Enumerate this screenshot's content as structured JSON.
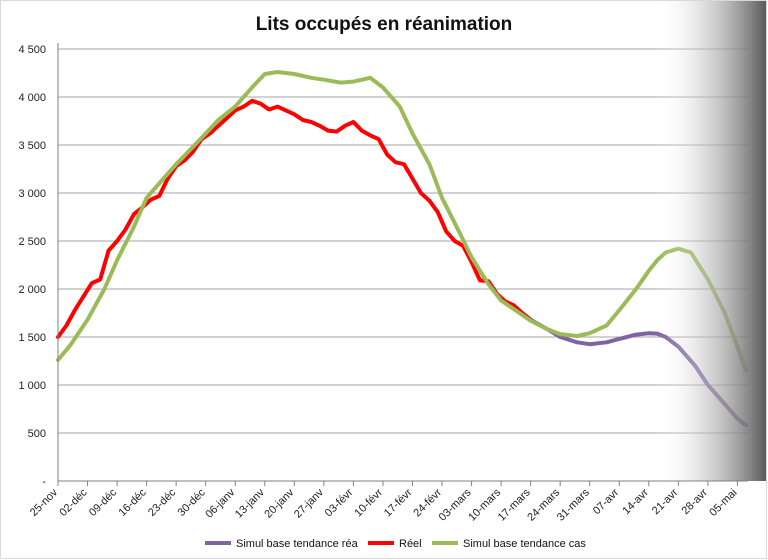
{
  "chart_data": {
    "type": "line",
    "title": "Lits occupés en réanimation",
    "xlabel": "",
    "ylabel": "",
    "ylim": [
      0,
      4500
    ],
    "yticks": [
      {
        "value": 0,
        "label": "-"
      },
      {
        "value": 500,
        "label": "500"
      },
      {
        "value": 1000,
        "label": "1 000"
      },
      {
        "value": 1500,
        "label": "1 500"
      },
      {
        "value": 2000,
        "label": "2 000"
      },
      {
        "value": 2500,
        "label": "2 500"
      },
      {
        "value": 3000,
        "label": "3 000"
      },
      {
        "value": 3500,
        "label": "3 500"
      },
      {
        "value": 4000,
        "label": "4 000"
      },
      {
        "value": 4500,
        "label": "4 500"
      }
    ],
    "xticks": [
      "25-nov",
      "02-déc",
      "09-déc",
      "16-déc",
      "23-déc",
      "30-déc",
      "06-janv",
      "13-janv",
      "20-janv",
      "27-janv",
      "03-févr",
      "10-févr",
      "17-févr",
      "24-févr",
      "03-mars",
      "10-mars",
      "17-mars",
      "24-mars",
      "31-mars",
      "07-avr",
      "14-avr",
      "21-avr",
      "28-avr",
      "05-mai"
    ],
    "grid": true,
    "legend": "bottom",
    "fade_from": "16-avr",
    "series": [
      {
        "name": "Simul base tendance réa",
        "color": "#8064a2",
        "x": [
          "17-mars",
          "21-mars",
          "24-mars",
          "28-mars",
          "31-mars",
          "04-avr",
          "07-avr",
          "11-avr",
          "14-avr",
          "16-avr",
          "18-avr",
          "21-avr",
          "25-avr",
          "28-avr",
          "02-mai",
          "05-mai",
          "07-mai"
        ],
        "values": [
          1680,
          1580,
          1500,
          1445,
          1425,
          1445,
          1480,
          1525,
          1540,
          1535,
          1500,
          1400,
          1200,
          1000,
          800,
          650,
          580
        ]
      },
      {
        "name": "Réel",
        "color": "#ff0000",
        "x": [
          "25-nov",
          "27-nov",
          "29-nov",
          "01-déc",
          "03-déc",
          "05-déc",
          "07-déc",
          "09-déc",
          "11-déc",
          "13-déc",
          "15-déc",
          "17-déc",
          "19-déc",
          "21-déc",
          "23-déc",
          "25-déc",
          "27-déc",
          "29-déc",
          "31-déc",
          "02-janv",
          "04-janv",
          "06-janv",
          "08-janv",
          "10-janv",
          "12-janv",
          "14-janv",
          "16-janv",
          "18-janv",
          "20-janv",
          "22-janv",
          "24-janv",
          "26-janv",
          "28-janv",
          "30-janv",
          "01-févr",
          "03-févr",
          "05-févr",
          "07-févr",
          "09-févr",
          "11-févr",
          "13-févr",
          "15-févr",
          "17-févr",
          "19-févr",
          "21-févr",
          "23-févr",
          "25-févr",
          "27-févr",
          "01-mars",
          "03-mars",
          "05-mars",
          "07-mars",
          "09-mars",
          "11-mars",
          "13-mars",
          "15-mars",
          "17-mars"
        ],
        "values": [
          1500,
          1620,
          1780,
          1920,
          2060,
          2100,
          2400,
          2500,
          2620,
          2780,
          2850,
          2930,
          2970,
          3150,
          3280,
          3340,
          3430,
          3560,
          3620,
          3700,
          3780,
          3860,
          3900,
          3960,
          3930,
          3870,
          3900,
          3860,
          3820,
          3760,
          3740,
          3700,
          3650,
          3640,
          3700,
          3740,
          3650,
          3600,
          3560,
          3400,
          3320,
          3300,
          3150,
          3000,
          2920,
          2800,
          2600,
          2500,
          2450,
          2280,
          2090,
          2080,
          1950,
          1870,
          1830,
          1750,
          1680
        ]
      },
      {
        "name": "Simul base tendance cas",
        "color": "#9bbb59",
        "x": [
          "25-nov",
          "28-nov",
          "02-déc",
          "06-déc",
          "09-déc",
          "13-déc",
          "16-déc",
          "20-déc",
          "23-déc",
          "27-déc",
          "30-déc",
          "02-janv",
          "06-janv",
          "10-janv",
          "13-janv",
          "16-janv",
          "20-janv",
          "24-janv",
          "27-janv",
          "31-janv",
          "03-févr",
          "07-févr",
          "10-févr",
          "14-févr",
          "17-févr",
          "21-févr",
          "24-févr",
          "28-févr",
          "03-mars",
          "07-mars",
          "10-mars",
          "14-mars",
          "17-mars",
          "21-mars",
          "24-mars",
          "28-mars",
          "31-mars",
          "04-avr",
          "07-avr",
          "11-avr",
          "14-avr",
          "16-avr",
          "18-avr",
          "21-avr",
          "24-avr",
          "28-avr",
          "02-mai",
          "05-mai",
          "07-mai"
        ],
        "values": [
          1260,
          1420,
          1680,
          2000,
          2300,
          2650,
          2950,
          3150,
          3300,
          3480,
          3620,
          3760,
          3900,
          4100,
          4240,
          4260,
          4240,
          4200,
          4180,
          4150,
          4160,
          4200,
          4100,
          3900,
          3620,
          3300,
          2950,
          2600,
          2330,
          2050,
          1880,
          1760,
          1670,
          1580,
          1530,
          1510,
          1540,
          1620,
          1780,
          2000,
          2190,
          2300,
          2380,
          2420,
          2380,
          2100,
          1750,
          1400,
          1150
        ]
      }
    ]
  }
}
